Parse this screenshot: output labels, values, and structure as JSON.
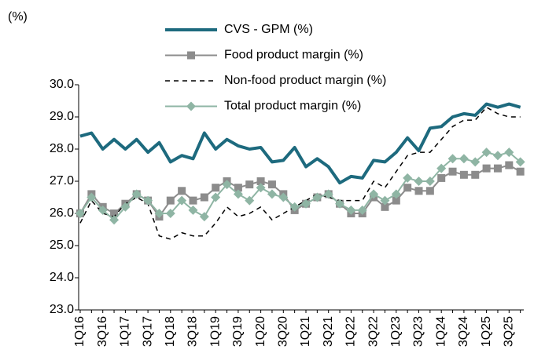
{
  "chart_data": {
    "type": "line",
    "y_unit_label": "(%)",
    "categories": [
      "1Q16",
      null,
      "3Q16",
      null,
      "1Q17",
      null,
      "3Q17",
      null,
      "1Q18",
      null,
      "3Q18",
      null,
      "1Q19",
      null,
      "3Q19",
      null,
      "1Q20",
      null,
      "3Q20",
      null,
      "1Q21",
      null,
      "3Q21",
      null,
      "1Q22",
      null,
      "3Q22",
      null,
      "1Q23",
      null,
      "3Q23",
      null,
      "1Q24",
      null,
      "3Q24",
      null,
      "1Q25",
      null,
      "3Q25",
      null
    ],
    "series": [
      {
        "name": "CVS - GPM (%)",
        "color": "#1d6a7e",
        "width": 4,
        "dash": false,
        "marker": "none",
        "values": [
          28.4,
          28.5,
          28.0,
          28.3,
          28.0,
          28.3,
          27.9,
          28.2,
          27.6,
          27.8,
          27.7,
          28.5,
          28.0,
          28.3,
          28.1,
          28.0,
          28.05,
          27.6,
          27.65,
          28.05,
          27.45,
          27.7,
          27.45,
          26.95,
          27.15,
          27.1,
          27.65,
          27.6,
          27.9,
          28.35,
          27.95,
          28.65,
          28.7,
          29.0,
          29.1,
          29.05,
          29.4,
          29.3,
          29.4,
          29.3
        ]
      },
      {
        "name": "Food product margin (%)",
        "color": "#8c8c8c",
        "width": 2,
        "dash": false,
        "marker": "square",
        "values": [
          26.0,
          26.6,
          26.2,
          26.0,
          26.3,
          26.6,
          26.4,
          25.9,
          26.4,
          26.7,
          26.4,
          26.5,
          26.8,
          27.0,
          26.8,
          26.9,
          27.0,
          26.9,
          26.6,
          26.1,
          26.3,
          26.5,
          26.6,
          26.3,
          26.0,
          26.0,
          26.5,
          26.2,
          26.4,
          26.8,
          26.7,
          26.7,
          27.1,
          27.3,
          27.2,
          27.2,
          27.4,
          27.4,
          27.5,
          27.3
        ]
      },
      {
        "name": "Non-food product margin (%)",
        "color": "#000000",
        "width": 1.5,
        "dash": true,
        "marker": "none",
        "values": [
          25.7,
          26.4,
          26.0,
          25.9,
          26.3,
          26.5,
          26.3,
          25.3,
          25.2,
          25.4,
          25.3,
          25.3,
          25.7,
          26.2,
          25.9,
          26.0,
          26.2,
          25.8,
          26.0,
          26.2,
          26.4,
          26.6,
          26.5,
          26.4,
          26.4,
          26.4,
          27.0,
          26.8,
          27.3,
          27.8,
          27.9,
          27.9,
          28.3,
          28.7,
          28.9,
          28.9,
          29.3,
          29.1,
          29.0,
          29.0
        ]
      },
      {
        "name": "Total product margin (%)",
        "color": "#8fb5a4",
        "width": 2,
        "dash": false,
        "marker": "diamond",
        "values": [
          26.0,
          26.5,
          26.1,
          25.8,
          26.2,
          26.6,
          26.4,
          26.0,
          26.0,
          26.4,
          26.1,
          25.9,
          26.5,
          26.9,
          26.6,
          26.4,
          26.8,
          26.6,
          26.5,
          26.2,
          26.3,
          26.5,
          26.6,
          26.3,
          26.1,
          26.1,
          26.6,
          26.4,
          26.6,
          27.1,
          27.0,
          27.0,
          27.4,
          27.7,
          27.7,
          27.6,
          27.9,
          27.8,
          27.9,
          27.6
        ]
      }
    ],
    "ylim": [
      23,
      30
    ],
    "yticks": [
      {
        "value": 23,
        "label": "23.0"
      },
      {
        "value": 24,
        "label": "24.0"
      },
      {
        "value": 25,
        "label": "25.0"
      },
      {
        "value": 26,
        "label": "26.0"
      },
      {
        "value": 27,
        "label": "27.0"
      },
      {
        "value": 28,
        "label": "28.0"
      },
      {
        "value": 29,
        "label": "29.0"
      },
      {
        "value": 30,
        "label": "30.0"
      }
    ],
    "grid": false,
    "legend": "top"
  }
}
